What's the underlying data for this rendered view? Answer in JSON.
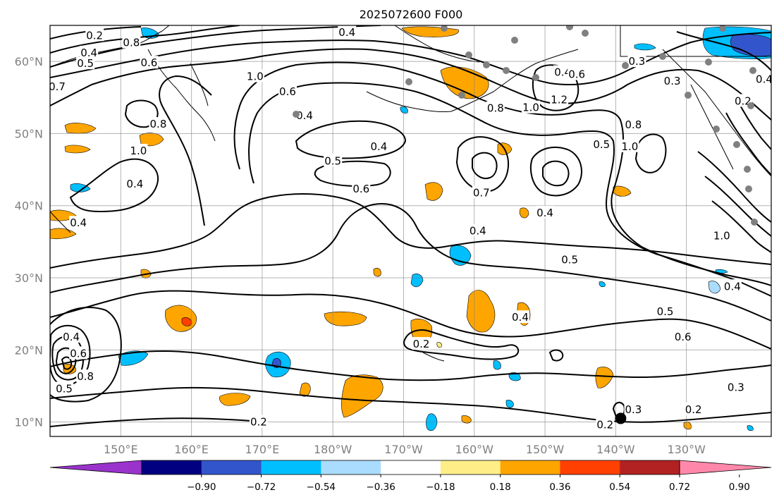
{
  "chart_data": {
    "type": "contour-map",
    "title": "2025072600 F000",
    "x_ticks": [
      "150°E",
      "160°E",
      "170°E",
      "180°W",
      "170°W",
      "160°W",
      "150°W",
      "140°W",
      "130°W"
    ],
    "x_tick_lon": [
      150,
      160,
      170,
      180,
      190,
      200,
      210,
      220,
      230
    ],
    "y_ticks": [
      "10°N",
      "20°N",
      "30°N",
      "40°N",
      "50°N",
      "60°N"
    ],
    "y_tick_lat": [
      10,
      20,
      30,
      40,
      50,
      60
    ],
    "lon_range": [
      140,
      242
    ],
    "lat_range": [
      8,
      65
    ],
    "grid": true,
    "colorbar": {
      "orientation": "horizontal",
      "extend": "both",
      "ticks": [
        "−0.90",
        "−0.72",
        "−0.54",
        "−0.36",
        "−0.18",
        "0.18",
        "0.36",
        "0.54",
        "0.72",
        "0.90"
      ],
      "colors": [
        "#9933cc",
        "#000080",
        "#3355cc",
        "#00bfff",
        "#aadcff",
        "#ffffff",
        "#ffee88",
        "#ffa500",
        "#ff4000",
        "#b22222",
        "#ff88aa"
      ]
    },
    "contour_labels": [
      {
        "text": "0.2",
        "lon": 146.3,
        "lat": 63.6
      },
      {
        "text": "0.4",
        "lon": 145.5,
        "lat": 61.2
      },
      {
        "text": "0.5",
        "lon": 145.0,
        "lat": 59.7
      },
      {
        "text": "0.6",
        "lon": 154.0,
        "lat": 59.8
      },
      {
        "text": "0.8",
        "lon": 151.5,
        "lat": 62.6
      },
      {
        "text": "1.0",
        "lon": 169.0,
        "lat": 57.9
      },
      {
        "text": "0.6",
        "lon": 173.6,
        "lat": 55.8
      },
      {
        "text": "0.4",
        "lon": 176.0,
        "lat": 52.5
      },
      {
        "text": "0.8",
        "lon": 155.3,
        "lat": 51.3
      },
      {
        "text": "1.0",
        "lon": 152.5,
        "lat": 47.6
      },
      {
        "text": "0.4",
        "lon": 152.0,
        "lat": 43.0
      },
      {
        "text": "0.4",
        "lon": 144.0,
        "lat": 37.6
      },
      {
        "text": "0.5",
        "lon": 180.0,
        "lat": 46.2
      },
      {
        "text": "0.4",
        "lon": 186.5,
        "lat": 48.2
      },
      {
        "text": "0.6",
        "lon": 184.0,
        "lat": 42.3
      },
      {
        "text": "0.4",
        "lon": 182.0,
        "lat": 64.0
      },
      {
        "text": "0.4",
        "lon": 212.5,
        "lat": 58.5
      },
      {
        "text": "0.6",
        "lon": 214.5,
        "lat": 58.2
      },
      {
        "text": "0.8",
        "lon": 203.0,
        "lat": 53.5
      },
      {
        "text": "1.0",
        "lon": 208.0,
        "lat": 53.6
      },
      {
        "text": "1.2",
        "lon": 212.0,
        "lat": 54.7
      },
      {
        "text": "0.5",
        "lon": 218.0,
        "lat": 48.5
      },
      {
        "text": "0.8",
        "lon": 222.5,
        "lat": 51.2
      },
      {
        "text": "1.0",
        "lon": 222.0,
        "lat": 48.2
      },
      {
        "text": "0.7",
        "lon": 201.0,
        "lat": 41.8
      },
      {
        "text": "0.4",
        "lon": 210.0,
        "lat": 39.0
      },
      {
        "text": "0.4",
        "lon": 200.5,
        "lat": 36.5
      },
      {
        "text": "0.5",
        "lon": 213.5,
        "lat": 32.5
      },
      {
        "text": "1.0",
        "lon": 235.0,
        "lat": 35.8
      },
      {
        "text": "0.4",
        "lon": 236.5,
        "lat": 28.8
      },
      {
        "text": "0.5",
        "lon": 227.0,
        "lat": 25.3
      },
      {
        "text": "0.6",
        "lon": 229.5,
        "lat": 21.8
      },
      {
        "text": "0.4",
        "lon": 206.5,
        "lat": 24.5
      },
      {
        "text": "0.2",
        "lon": 192.5,
        "lat": 20.8
      },
      {
        "text": "0.4",
        "lon": 143.0,
        "lat": 21.8
      },
      {
        "text": "0.6",
        "lon": 144.0,
        "lat": 19.5
      },
      {
        "text": "0.8",
        "lon": 145.0,
        "lat": 16.3
      },
      {
        "text": "0.5",
        "lon": 142.0,
        "lat": 14.6
      },
      {
        "text": "0.3",
        "lon": 237.0,
        "lat": 14.8
      },
      {
        "text": "0.3",
        "lon": 222.5,
        "lat": 11.7
      },
      {
        "text": "0.2",
        "lon": 218.5,
        "lat": 9.6
      },
      {
        "text": "0.2",
        "lon": 231.0,
        "lat": 11.7
      },
      {
        "text": "0.2",
        "lon": 169.5,
        "lat": 10.0
      },
      {
        "text": "0.3",
        "lon": 228.0,
        "lat": 57.3
      },
      {
        "text": "0.3",
        "lon": 223.0,
        "lat": 60.0
      },
      {
        "text": "0.2",
        "lon": 238.0,
        "lat": 54.5
      },
      {
        "text": "0.4",
        "lon": 241.0,
        "lat": 57.5
      },
      {
        "text": "0.7",
        "lon": 141.0,
        "lat": 56.5
      }
    ],
    "black_marker": {
      "lon": 220.7,
      "lat": 10.5
    }
  }
}
